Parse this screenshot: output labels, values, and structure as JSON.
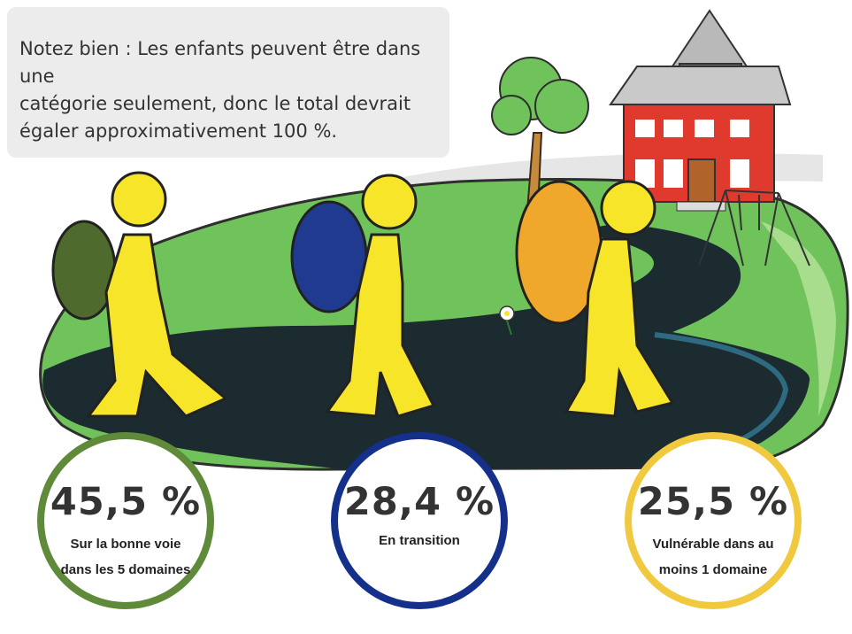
{
  "note": {
    "line1": "Notez bien : Les enfants peuvent être dans une",
    "line2": "catégorie seulement, donc le total devrait",
    "line3": "égaler approximativement 100 %."
  },
  "stats": [
    {
      "value": "45,5 %",
      "label_line1": "Sur la bonne voie",
      "label_line2": "dans les 5 domaines",
      "color": "#5f8a3a"
    },
    {
      "value": "28,4 %",
      "label_line1": "En transition",
      "label_line2": "",
      "color": "#14308a"
    },
    {
      "value": "25,5 %",
      "label_line1": "Vulnérable dans au",
      "label_line2": "moins 1 domaine",
      "color": "#f0c93e"
    }
  ],
  "colors": {
    "hill": "#6fc35a",
    "path": "#1b2b30",
    "figure": "#f7e52a",
    "backpack_green": "#4e6a2c",
    "backpack_blue": "#1f3a8f",
    "backpack_orange": "#f0a82c",
    "school": "#e03a2e"
  }
}
